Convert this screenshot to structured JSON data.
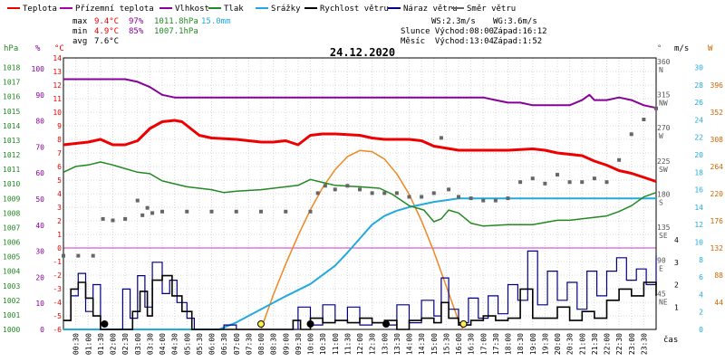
{
  "chart_data": {
    "type": "line",
    "title": "24.12.2020",
    "legend": [
      {
        "label": "Teplota",
        "color": "#ee0000"
      },
      {
        "label": "Přízemní teplota",
        "color": "#aa00aa"
      },
      {
        "label": "Vlhkost",
        "color": "#880099"
      },
      {
        "label": "Tlak",
        "color": "#228822"
      },
      {
        "label": "Srážky",
        "color": "#22aadd"
      },
      {
        "label": "Rychlost větru",
        "color": "#000000"
      },
      {
        "label": "Náraz větru",
        "color": "#000080"
      },
      {
        "label": "Směr větru",
        "color": "#666666"
      }
    ],
    "stats": {
      "max_label": "max",
      "max_temp": "9.4°C",
      "max_hum": "97%",
      "max_pres": "1011.8hPa",
      "max_rain": "15.0mm",
      "min_label": "min",
      "min_temp": "4.9°C",
      "min_hum": "85%",
      "min_pres": "1007.1hPa",
      "avg_label": "avg",
      "avg_temp": "7.6°C",
      "wind": "WS:2.3m/s",
      "gust": "WG:3.6m/s",
      "sun": "Slunce Východ:08:00",
      "sun_set": "Západ:16:12",
      "moon": "Měsíc  Východ:13:04",
      "moon_set": "Západ:1:52"
    },
    "axes": {
      "hpa_unit": "hPa",
      "pct_unit": "%",
      "temp_unit": "°C",
      "ms_unit": "m/s",
      "deg_unit": "°",
      "w_unit": "W",
      "xlabel": "čas",
      "hpa_ticks": [
        "1018",
        "1017",
        "1016",
        "1015",
        "1014",
        "1013",
        "1012",
        "1011",
        "1010",
        "1009",
        "1008",
        "1007",
        "1006",
        "1005",
        "1004",
        "1003",
        "1002",
        "1001",
        "1000"
      ],
      "pct_ticks": [
        "100",
        "90",
        "80",
        "70",
        "60",
        "50",
        "40",
        "30",
        "20",
        "10",
        "0"
      ],
      "temp_ticks": [
        "14",
        "13",
        "12",
        "11",
        "10",
        "9",
        "8",
        "7",
        "6",
        "5",
        "4",
        "3",
        "2",
        "1",
        "0",
        "-1",
        "-2",
        "-3",
        "-4",
        "-5",
        "-6"
      ],
      "dir_ticks": [
        {
          "deg": "360",
          "dir": "N"
        },
        {
          "deg": "315",
          "dir": "NW"
        },
        {
          "deg": "270",
          "dir": "W"
        },
        {
          "deg": "225",
          "dir": "SW"
        },
        {
          "deg": "180",
          "dir": "S"
        },
        {
          "deg": "135",
          "dir": "SE"
        },
        {
          "deg": "90",
          "dir": "E"
        },
        {
          "deg": "45",
          "dir": "NE"
        }
      ],
      "ms_ticks": [
        "4",
        "3",
        "2",
        "1"
      ],
      "mm_ticks": [
        "30",
        "28",
        "26",
        "24",
        "22",
        "20",
        "18",
        "16",
        "14",
        "12",
        "10",
        "8",
        "6",
        "4",
        "2",
        "0"
      ],
      "w_ticks": [
        "396",
        "352",
        "308",
        "264",
        "220",
        "176",
        "132",
        "88",
        "44"
      ],
      "x_ticks": [
        "00:30",
        "01:00",
        "01:30",
        "02:00",
        "02:30",
        "03:00",
        "03:30",
        "04:00",
        "04:30",
        "05:00",
        "05:30",
        "06:00",
        "06:30",
        "07:00",
        "07:30",
        "08:00",
        "08:30",
        "09:00",
        "09:30",
        "10:00",
        "10:30",
        "11:00",
        "11:30",
        "12:00",
        "12:30",
        "13:00",
        "13:30",
        "14:00",
        "14:30",
        "15:00",
        "15:30",
        "16:00",
        "16:30",
        "17:00",
        "17:30",
        "18:00",
        "18:30",
        "19:00",
        "19:30",
        "20:00",
        "20:30",
        "21:00",
        "21:30",
        "22:00",
        "22:30",
        "23:00",
        "23:30"
      ]
    },
    "series": {
      "temperature_C": [
        [
          0,
          7.6
        ],
        [
          0.5,
          7.7
        ],
        [
          1,
          7.8
        ],
        [
          1.5,
          8
        ],
        [
          2,
          7.6
        ],
        [
          2.5,
          7.6
        ],
        [
          3,
          7.9
        ],
        [
          3.5,
          8.8
        ],
        [
          4,
          9.3
        ],
        [
          4.5,
          9.4
        ],
        [
          4.8,
          9.3
        ],
        [
          5.5,
          8.3
        ],
        [
          6,
          8.1
        ],
        [
          7,
          8
        ],
        [
          8,
          7.8
        ],
        [
          8.5,
          7.8
        ],
        [
          9,
          7.9
        ],
        [
          9.5,
          7.6
        ],
        [
          10,
          8.3
        ],
        [
          10.5,
          8.4
        ],
        [
          11,
          8.4
        ],
        [
          12,
          8.3
        ],
        [
          12.5,
          8.1
        ],
        [
          13,
          8
        ],
        [
          13.5,
          8
        ],
        [
          14,
          8
        ],
        [
          14.5,
          7.9
        ],
        [
          15,
          7.5
        ],
        [
          16,
          7.2
        ],
        [
          17,
          7.2
        ],
        [
          18,
          7.2
        ],
        [
          19,
          7.3
        ],
        [
          19.5,
          7.2
        ],
        [
          20,
          7
        ],
        [
          21,
          6.8
        ],
        [
          21.5,
          6.4
        ],
        [
          22,
          6.1
        ],
        [
          22.5,
          5.7
        ],
        [
          23,
          5.5
        ],
        [
          23.5,
          5.2
        ],
        [
          24,
          4.9
        ]
      ],
      "humidity_pct": [
        [
          0,
          96
        ],
        [
          0.6,
          96
        ],
        [
          1.2,
          96
        ],
        [
          2,
          96
        ],
        [
          2.5,
          96
        ],
        [
          3,
          95
        ],
        [
          3.5,
          93
        ],
        [
          4,
          90
        ],
        [
          4.5,
          89
        ],
        [
          5,
          89
        ],
        [
          6,
          89
        ],
        [
          7,
          89
        ],
        [
          8,
          89
        ],
        [
          9,
          89
        ],
        [
          10,
          89
        ],
        [
          11,
          89
        ],
        [
          12,
          89
        ],
        [
          13,
          89
        ],
        [
          14,
          89
        ],
        [
          15,
          89
        ],
        [
          16,
          89
        ],
        [
          17,
          89
        ],
        [
          17.5,
          88
        ],
        [
          18,
          87
        ],
        [
          18.5,
          87
        ],
        [
          19,
          86
        ],
        [
          19.5,
          86
        ],
        [
          20,
          86
        ],
        [
          20.5,
          86
        ],
        [
          21,
          88
        ],
        [
          21.3,
          90
        ],
        [
          21.5,
          88
        ],
        [
          22,
          88
        ],
        [
          22.5,
          89
        ],
        [
          23,
          88
        ],
        [
          23.5,
          86
        ],
        [
          24,
          85
        ]
      ],
      "pressure_hPa": [
        [
          0,
          1010.8
        ],
        [
          0.5,
          1011.2
        ],
        [
          1,
          1011.3
        ],
        [
          1.5,
          1011.5
        ],
        [
          2,
          1011.3
        ],
        [
          3,
          1010.8
        ],
        [
          3.5,
          1010.7
        ],
        [
          4,
          1010.2
        ],
        [
          5,
          1009.8
        ],
        [
          6,
          1009.6
        ],
        [
          6.5,
          1009.4
        ],
        [
          7,
          1009.5
        ],
        [
          8,
          1009.6
        ],
        [
          9,
          1009.8
        ],
        [
          9.5,
          1009.9
        ],
        [
          10,
          1010.3
        ],
        [
          10.5,
          1010.1
        ],
        [
          11,
          1009.9
        ],
        [
          12,
          1009.8
        ],
        [
          12.8,
          1009.7
        ],
        [
          13.3,
          1009.3
        ],
        [
          14,
          1008.5
        ],
        [
          14.6,
          1008.2
        ],
        [
          15,
          1007.4
        ],
        [
          15.3,
          1007.6
        ],
        [
          15.6,
          1008.2
        ],
        [
          16,
          1008
        ],
        [
          16.5,
          1007.3
        ],
        [
          17,
          1007.1
        ],
        [
          18,
          1007.2
        ],
        [
          19,
          1007.2
        ],
        [
          20,
          1007.5
        ],
        [
          20.5,
          1007.5
        ],
        [
          21,
          1007.6
        ],
        [
          22,
          1007.8
        ],
        [
          22.5,
          1008.1
        ],
        [
          23,
          1008.5
        ],
        [
          23.5,
          1009.1
        ],
        [
          24,
          1009.4
        ]
      ],
      "rain_mm": [
        [
          0,
          0
        ],
        [
          6.3,
          0
        ],
        [
          7,
          0.8
        ],
        [
          8,
          2.3
        ],
        [
          9,
          3.8
        ],
        [
          10,
          5.2
        ],
        [
          11,
          7.3
        ],
        [
          11.5,
          8.8
        ],
        [
          12,
          10.4
        ],
        [
          12.5,
          12
        ],
        [
          13,
          13
        ],
        [
          13.5,
          13.6
        ],
        [
          14,
          14
        ],
        [
          15,
          14.6
        ],
        [
          16,
          15
        ],
        [
          24,
          15
        ]
      ],
      "solar_W": [
        [
          8,
          0
        ],
        [
          8.5,
          56
        ],
        [
          9,
          106
        ],
        [
          9.5,
          152
        ],
        [
          10,
          194
        ],
        [
          10.5,
          230
        ],
        [
          11,
          259
        ],
        [
          11.5,
          280
        ],
        [
          12,
          290
        ],
        [
          12.5,
          288
        ],
        [
          13,
          276
        ],
        [
          13.5,
          252
        ],
        [
          14,
          219
        ],
        [
          14.5,
          176
        ],
        [
          15,
          126
        ],
        [
          15.5,
          70
        ],
        [
          16,
          14
        ],
        [
          16.2,
          0
        ]
      ],
      "wind_speed_ms": [
        [
          0,
          0.4
        ],
        [
          0.3,
          1.8
        ],
        [
          0.6,
          2.1
        ],
        [
          0.9,
          1.4
        ],
        [
          1.2,
          0.6
        ],
        [
          1.5,
          0
        ],
        [
          2,
          0
        ],
        [
          2.5,
          0
        ],
        [
          2.8,
          0.8
        ],
        [
          3.1,
          1.7
        ],
        [
          3.4,
          0.6
        ],
        [
          3.6,
          2.2
        ],
        [
          4,
          2.4
        ],
        [
          4.4,
          1.5
        ],
        [
          4.8,
          0.8
        ],
        [
          5.2,
          0
        ],
        [
          6,
          0
        ],
        [
          9,
          0
        ],
        [
          9.3,
          0.4
        ],
        [
          9.6,
          0
        ],
        [
          10,
          0.5
        ],
        [
          10.5,
          0.3
        ],
        [
          11,
          0.4
        ],
        [
          11.5,
          0.3
        ],
        [
          12,
          0.5
        ],
        [
          12.5,
          0.3
        ],
        [
          13,
          0.4
        ],
        [
          13.5,
          0
        ],
        [
          14,
          0.4
        ],
        [
          14.5,
          0.5
        ],
        [
          15,
          0.3
        ],
        [
          15.3,
          1.2
        ],
        [
          15.6,
          0.5
        ],
        [
          16,
          0.2
        ],
        [
          16.5,
          0.4
        ],
        [
          17,
          0.6
        ],
        [
          17.5,
          0.4
        ],
        [
          18,
          0.5
        ],
        [
          18.5,
          1.8
        ],
        [
          19,
          0.5
        ],
        [
          19.5,
          0.5
        ],
        [
          20,
          1
        ],
        [
          20.5,
          0.4
        ],
        [
          21,
          0.8
        ],
        [
          21.5,
          0.5
        ],
        [
          22,
          1.3
        ],
        [
          22.5,
          1.8
        ],
        [
          23,
          1.5
        ],
        [
          23.5,
          2.1
        ],
        [
          24,
          1.5
        ]
      ],
      "gust_ms": [
        [
          0,
          0.4
        ],
        [
          0.3,
          1.5
        ],
        [
          0.6,
          2.5
        ],
        [
          0.9,
          0.8
        ],
        [
          1.2,
          2
        ],
        [
          1.5,
          0
        ],
        [
          2,
          0
        ],
        [
          2.4,
          1.8
        ],
        [
          2.7,
          0.5
        ],
        [
          3,
          2.4
        ],
        [
          3.3,
          1
        ],
        [
          3.6,
          3
        ],
        [
          4,
          1.6
        ],
        [
          4.3,
          2.2
        ],
        [
          4.6,
          1.2
        ],
        [
          5,
          0.5
        ],
        [
          5.3,
          0
        ],
        [
          6,
          0
        ],
        [
          6.5,
          0.2
        ],
        [
          7,
          0
        ],
        [
          9,
          0
        ],
        [
          9.5,
          1
        ],
        [
          10,
          0.2
        ],
        [
          10.5,
          1.1
        ],
        [
          11,
          0.4
        ],
        [
          11.5,
          1
        ],
        [
          12,
          0.2
        ],
        [
          12.5,
          0.3
        ],
        [
          13,
          0.2
        ],
        [
          13.5,
          1.1
        ],
        [
          14,
          0.3
        ],
        [
          14.5,
          1.3
        ],
        [
          15,
          0.6
        ],
        [
          15.3,
          2.3
        ],
        [
          15.6,
          0.9
        ],
        [
          16,
          0.3
        ],
        [
          16.4,
          1.4
        ],
        [
          16.8,
          0.5
        ],
        [
          17.2,
          1.5
        ],
        [
          17.6,
          0.7
        ],
        [
          18,
          2
        ],
        [
          18.4,
          1.3
        ],
        [
          18.8,
          3.5
        ],
        [
          19.2,
          1.1
        ],
        [
          19.6,
          2.6
        ],
        [
          20,
          1.3
        ],
        [
          20.4,
          2.1
        ],
        [
          20.8,
          0.9
        ],
        [
          21.2,
          2.6
        ],
        [
          21.6,
          1.5
        ],
        [
          22,
          2.6
        ],
        [
          22.4,
          3.2
        ],
        [
          22.8,
          2.2
        ],
        [
          23.2,
          2.7
        ],
        [
          23.6,
          2
        ],
        [
          24,
          3.3
        ]
      ],
      "wind_dir_deg": [
        [
          0,
          100
        ],
        [
          0.6,
          100
        ],
        [
          1.2,
          100
        ],
        [
          1.6,
          150
        ],
        [
          2,
          148
        ],
        [
          2.5,
          150
        ],
        [
          3,
          175
        ],
        [
          3.2,
          155
        ],
        [
          3.4,
          165
        ],
        [
          3.6,
          158
        ],
        [
          4,
          160
        ],
        [
          5,
          160
        ],
        [
          6,
          160
        ],
        [
          7,
          160
        ],
        [
          8,
          160
        ],
        [
          9,
          160
        ],
        [
          10,
          160
        ],
        [
          10.3,
          185
        ],
        [
          10.6,
          195
        ],
        [
          11,
          190
        ],
        [
          11.5,
          195
        ],
        [
          12,
          190
        ],
        [
          12.5,
          185
        ],
        [
          13,
          185
        ],
        [
          13.5,
          185
        ],
        [
          14,
          180
        ],
        [
          14.5,
          180
        ],
        [
          15,
          185
        ],
        [
          15.3,
          260
        ],
        [
          15.6,
          190
        ],
        [
          16,
          180
        ],
        [
          16.5,
          178
        ],
        [
          17,
          175
        ],
        [
          17.5,
          175
        ],
        [
          18,
          178
        ],
        [
          18.5,
          200
        ],
        [
          19,
          205
        ],
        [
          19.5,
          198
        ],
        [
          20,
          210
        ],
        [
          20.5,
          200
        ],
        [
          21,
          200
        ],
        [
          21.5,
          205
        ],
        [
          22,
          200
        ],
        [
          22.5,
          230
        ],
        [
          23,
          265
        ],
        [
          23.5,
          285
        ],
        [
          24,
          300
        ]
      ]
    },
    "markers": [
      {
        "time": "01:40"
      },
      {
        "time": "08:00"
      },
      {
        "time": "10:00"
      },
      {
        "time": "13:04"
      },
      {
        "time": "16:12"
      }
    ]
  }
}
